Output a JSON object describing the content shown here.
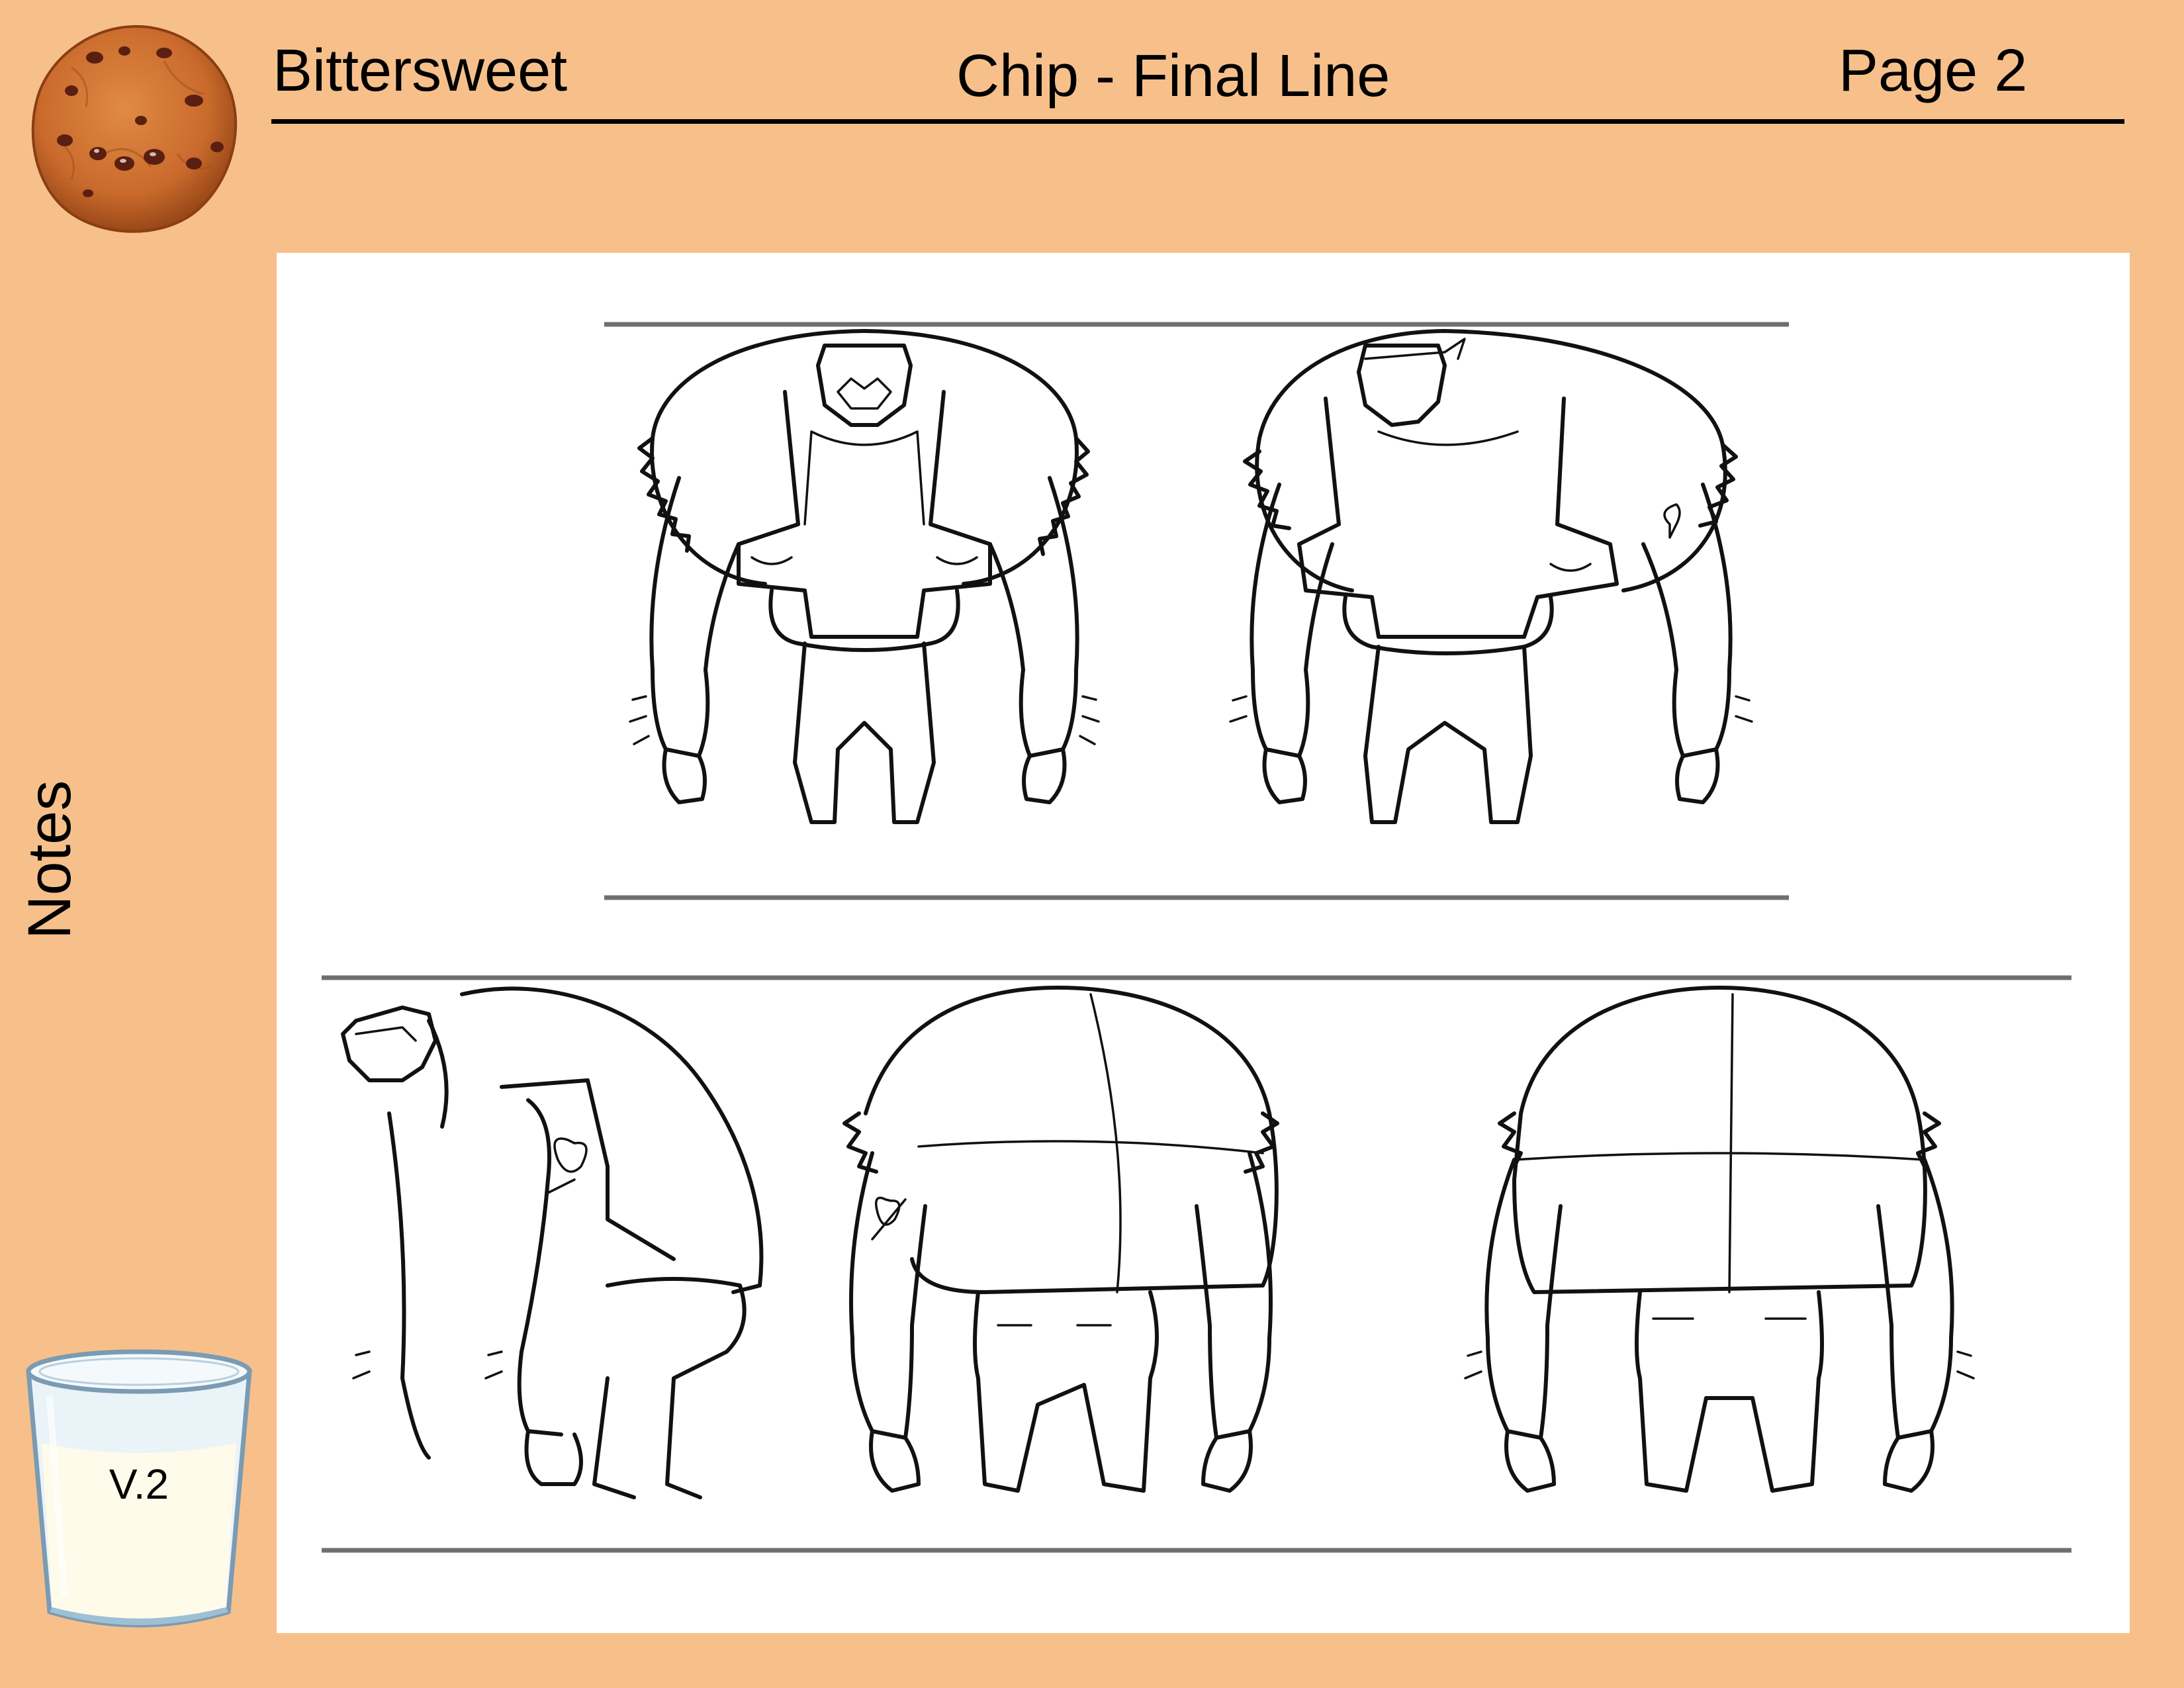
{
  "header": {
    "project": "Bittersweet",
    "sheet_title": "Chip - Final Line",
    "page": "Page 2"
  },
  "sidebar": {
    "notes_label": "Notes",
    "version": "V.2"
  },
  "sheet": {
    "views": [
      "front",
      "three-quarter-front",
      "side",
      "three-quarter-back",
      "back"
    ]
  },
  "icons": {
    "logo": "cookie-icon",
    "glass": "milk-glass-icon"
  },
  "colors": {
    "background": "#f7c08b",
    "sheet": "#ffffff",
    "cookie": "#c96a2c",
    "chocolate_chip": "#5a1f10",
    "milk": "#fffbea"
  }
}
